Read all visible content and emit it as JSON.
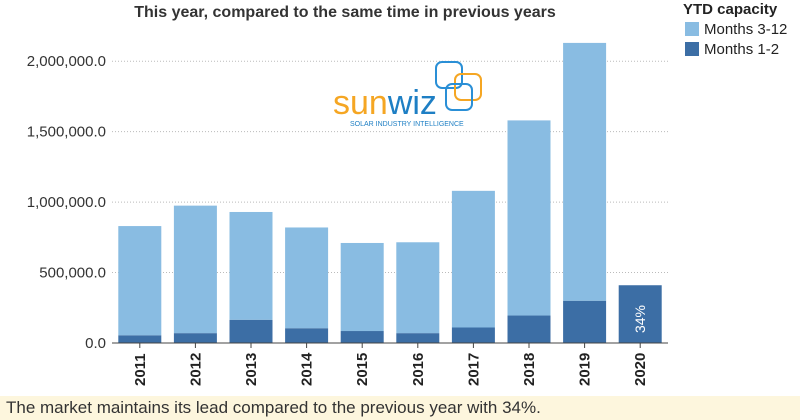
{
  "chart_data": {
    "type": "bar",
    "stacked": true,
    "title": "This year, compared to the same time in previous years",
    "xlabel": "",
    "ylabel": "",
    "categories": [
      "2011",
      "2012",
      "2013",
      "2014",
      "2015",
      "2016",
      "2017",
      "2018",
      "2019",
      "2020"
    ],
    "series": [
      {
        "name": "Months 1-2",
        "color": "#3c6ea5",
        "values": [
          55000,
          70000,
          165000,
          105000,
          85000,
          70000,
          110000,
          195000,
          300000,
          410000
        ]
      },
      {
        "name": "Months 3-12",
        "color": "#89bce2",
        "values": [
          775000,
          905000,
          765000,
          715000,
          625000,
          645000,
          970000,
          1385000,
          1830000,
          null
        ]
      }
    ],
    "ylim": [
      0,
      2250000
    ],
    "yticks": [
      0,
      500000,
      1000000,
      1500000,
      2000000
    ],
    "ytick_labels": [
      "0.0",
      "500,000.0",
      "1,000,000.0",
      "1,500,000.0",
      "2,000,000.0"
    ],
    "grid": true,
    "legend_title": "YTD capacity",
    "legend_position": "top-right",
    "annotations": [
      {
        "category": "2020",
        "text": "34%"
      }
    ]
  },
  "logo": {
    "name": "sunwiz",
    "text": "sunwiz",
    "tagline": "SOLAR INDUSTRY INTELLIGENCE",
    "accent_color": "#f5a623",
    "text_color": "#1e7fc4"
  },
  "caption": "The market maintains its lead compared to the previous year with 34%."
}
